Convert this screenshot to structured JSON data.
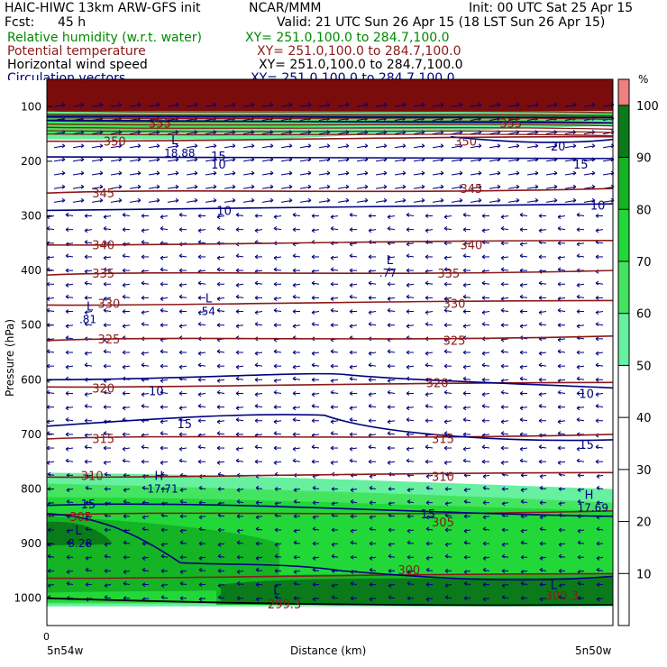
{
  "header": {
    "model_line": "HAIC-HIWC 13km ARW-GFS init",
    "org": "NCAR/MMM",
    "init": "Init: 00 UTC Sat 25 Apr 15",
    "fcst_label": "Fcst:",
    "fcst_value": "45 h",
    "valid": "Valid: 21 UTC Sun 26 Apr 15 (18 LST Sun 26 Apr 15)",
    "fields": [
      {
        "name": "Relative humidity (w.r.t. water)",
        "xy": "XY= 251.0,100.0 to 284.7,100.0",
        "color": "#008800"
      },
      {
        "name": "Potential temperature",
        "xy": "XY= 251.0,100.0 to 284.7,100.0",
        "color": "#8b1a1a"
      },
      {
        "name": "Horizontal wind speed",
        "xy": "XY= 251.0,100.0 to 284.7,100.0",
        "color": "#000000"
      },
      {
        "name": "Circulation vectors",
        "xy": "XY= 251.0,100.0 to 284.7,100.0",
        "color": "#000080"
      }
    ]
  },
  "chart_data": {
    "type": "heatmap",
    "xlabel": "Distance (km)",
    "ylabel": "Pressure (hPa)",
    "x_start_tick": "0",
    "x_start_label": "5n54w",
    "x_end_label": "5n50w",
    "ylim": [
      1050,
      50
    ],
    "yticks": [
      100,
      200,
      300,
      400,
      500,
      600,
      700,
      800,
      900,
      1000
    ],
    "colorbar": {
      "unit": "%",
      "ticks": [
        10,
        20,
        30,
        40,
        50,
        60,
        70,
        80,
        90,
        100
      ],
      "bands": [
        {
          "from": 50,
          "to": 60,
          "color": "#66f0a0"
        },
        {
          "from": 60,
          "to": 70,
          "color": "#44e460"
        },
        {
          "from": 70,
          "to": 80,
          "color": "#22d838"
        },
        {
          "from": 80,
          "to": 90,
          "color": "#14b424"
        },
        {
          "from": 90,
          "to": 100,
          "color": "#0a7a1a"
        },
        {
          "from": 100,
          "to": 105,
          "color": "#f08080"
        }
      ]
    },
    "theta_contours": [
      {
        "label": "350",
        "p": 160
      },
      {
        "label": "345",
        "p": 255
      },
      {
        "label": "340",
        "p": 350
      },
      {
        "label": "335",
        "p": 405
      },
      {
        "label": "330",
        "p": 460
      },
      {
        "label": "325",
        "p": 525
      },
      {
        "label": "320",
        "p": 610
      },
      {
        "label": "315",
        "p": 705
      },
      {
        "label": "310",
        "p": 775
      },
      {
        "label": "305",
        "p": 845
      },
      {
        "label": "300",
        "p": 960
      }
    ],
    "theta_labels": [
      {
        "text": "355",
        "x_frac": 0.18,
        "p": 130
      },
      {
        "text": "355",
        "x_frac": 0.8,
        "p": 130
      },
      {
        "text": "350",
        "x_frac": 0.1,
        "p": 163
      },
      {
        "text": "350",
        "x_frac": 0.72,
        "p": 163
      },
      {
        "text": "345",
        "x_frac": 0.08,
        "p": 258
      },
      {
        "text": "345",
        "x_frac": 0.73,
        "p": 250
      },
      {
        "text": "340",
        "x_frac": 0.08,
        "p": 353
      },
      {
        "text": "340",
        "x_frac": 0.73,
        "p": 353
      },
      {
        "text": "335",
        "x_frac": 0.08,
        "p": 405
      },
      {
        "text": "335",
        "x_frac": 0.69,
        "p": 405
      },
      {
        "text": "330",
        "x_frac": 0.09,
        "p": 460
      },
      {
        "text": "330",
        "x_frac": 0.7,
        "p": 460
      },
      {
        "text": "325",
        "x_frac": 0.09,
        "p": 525
      },
      {
        "text": "325",
        "x_frac": 0.7,
        "p": 528
      },
      {
        "text": "320",
        "x_frac": 0.08,
        "p": 615
      },
      {
        "text": "320",
        "x_frac": 0.67,
        "p": 605
      },
      {
        "text": "315",
        "x_frac": 0.08,
        "p": 708
      },
      {
        "text": "315",
        "x_frac": 0.68,
        "p": 708
      },
      {
        "text": "310",
        "x_frac": 0.06,
        "p": 775
      },
      {
        "text": "310",
        "x_frac": 0.68,
        "p": 777
      },
      {
        "text": "305",
        "x_frac": 0.04,
        "p": 850
      },
      {
        "text": "305",
        "x_frac": 0.68,
        "p": 860
      },
      {
        "text": "300",
        "x_frac": 0.62,
        "p": 948
      },
      {
        "text": "299.3",
        "x_frac": 0.39,
        "p": 1010
      },
      {
        "text": "300.3",
        "x_frac": 0.88,
        "p": 995
      }
    ],
    "wind_labels": [
      {
        "text": "10",
        "x_frac": 0.29,
        "p": 205
      },
      {
        "text": "15",
        "x_frac": 0.29,
        "p": 190
      },
      {
        "text": "15",
        "x_frac": 0.93,
        "p": 205
      },
      {
        "text": "10",
        "x_frac": 0.3,
        "p": 290
      },
      {
        "text": "10",
        "x_frac": 0.96,
        "p": 280
      },
      {
        "text": "20",
        "x_frac": 0.89,
        "p": 172
      },
      {
        "text": "10",
        "x_frac": 0.18,
        "p": 620
      },
      {
        "text": "10",
        "x_frac": 0.94,
        "p": 625
      },
      {
        "text": "15",
        "x_frac": 0.23,
        "p": 680
      },
      {
        "text": "15",
        "x_frac": 0.94,
        "p": 718
      },
      {
        "text": "15",
        "x_frac": 0.06,
        "p": 827
      },
      {
        "text": "15",
        "x_frac": 0.66,
        "p": 845
      }
    ],
    "extrema": [
      {
        "letter": "L",
        "value": "18.88",
        "x_frac": 0.22,
        "p": 175
      },
      {
        "letter": "L",
        "value": ".77",
        "x_frac": 0.6,
        "p": 395
      },
      {
        "letter": "L",
        "value": ".54",
        "x_frac": 0.28,
        "p": 465
      },
      {
        "letter": "L",
        "value": ".81",
        "x_frac": 0.07,
        "p": 480
      },
      {
        "letter": "H",
        "value": "17.71",
        "x_frac": 0.19,
        "p": 790
      },
      {
        "letter": "H",
        "value": "17.69",
        "x_frac": 0.95,
        "p": 825
      },
      {
        "letter": "L",
        "value": "8.28",
        "x_frac": 0.05,
        "p": 890
      },
      {
        "letter": "L",
        "value": "",
        "x_frac": 0.4,
        "p": 1000
      },
      {
        "letter": "L",
        "value": "",
        "x_frac": 0.89,
        "p": 990
      }
    ]
  }
}
